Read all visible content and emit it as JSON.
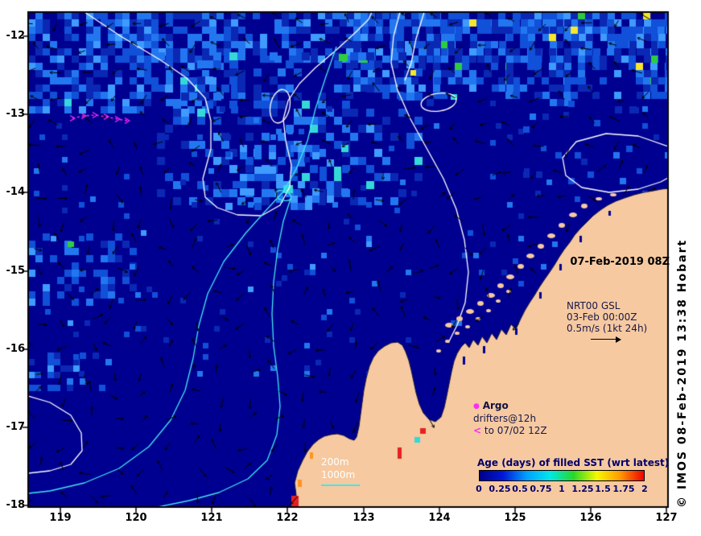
{
  "colors": {
    "ocean": "#000090",
    "land": "#f6c9a0",
    "contour_white": "#ffffff",
    "bathy_cyan": "#40e8f0",
    "vector_black": "#000000",
    "drifter_magenta": "#ff2cf4",
    "frame": "#000000",
    "text_navy": "#00006b",
    "age_palette": [
      "#000090",
      "#0a28b4",
      "#1150d8",
      "#2277f0",
      "#3f9bff",
      "#35d8d8",
      "#2ecc40",
      "#f5e62e",
      "#ff9421",
      "#e32222"
    ]
  },
  "axes": {
    "x_ticks": [
      "119",
      "120",
      "121",
      "122",
      "123",
      "124",
      "125",
      "126",
      "127"
    ],
    "y_ticks": [
      "-12",
      "-13",
      "-14",
      "-15",
      "-16",
      "-17",
      "-18"
    ]
  },
  "annotations": {
    "datetime": "07-Feb-2019 08Z",
    "nrt_line1": "NRT00 GSL",
    "nrt_line2": "03-Feb 00:00Z",
    "nrt_line3": "0.5m/s (1kt 24h)",
    "argo_label": "Argo",
    "drifters_line1": "drifters@12h",
    "drifters_line2": "to 07/02 12Z",
    "depth_200": "200m",
    "depth_1000": "1000m",
    "copyright": "© IMOS 08-Feb-2019 13:38 Hobart"
  },
  "icons": {
    "argo_marker": "●",
    "drifter_marker": "<"
  },
  "colorbar": {
    "title": "Age (days) of filled SST (wrt latest)",
    "ticks": [
      "0",
      "0.25",
      "0.5",
      "0.75",
      "1",
      "1.25",
      "1.5",
      "1.75",
      "2"
    ],
    "gradient": [
      "#000089",
      "#0018d8",
      "#00a0ff",
      "#00e8e8",
      "#28d828",
      "#f8f800",
      "#ff9800",
      "#f00000"
    ]
  },
  "chart_data": {
    "type": "heatmap",
    "title": "Age (days) of filled SST (wrt latest)",
    "x_ticks": [
      119,
      120,
      121,
      122,
      123,
      124,
      125,
      126,
      127
    ],
    "y_ticks": [
      -12,
      -13,
      -14,
      -15,
      -16,
      -17,
      -18
    ],
    "x_range": [
      118.6,
      127.0
    ],
    "y_range": [
      -18.0,
      -11.7
    ],
    "colorbar_range": [
      0,
      2
    ],
    "colorbar_ticks": [
      0,
      0.25,
      0.5,
      0.75,
      1,
      1.25,
      1.5,
      1.75,
      2
    ],
    "legend_position": "bottom-right-on-land",
    "overlays": [
      "filled SST age heatmap",
      "surface current vectors (NRT00 GSL 03-Feb 00:00Z)",
      "200m and 1000m isobaths (cyan)",
      "white SST contours",
      "magenta Argo/drifter track",
      "land mask (NW Australia)"
    ]
  }
}
